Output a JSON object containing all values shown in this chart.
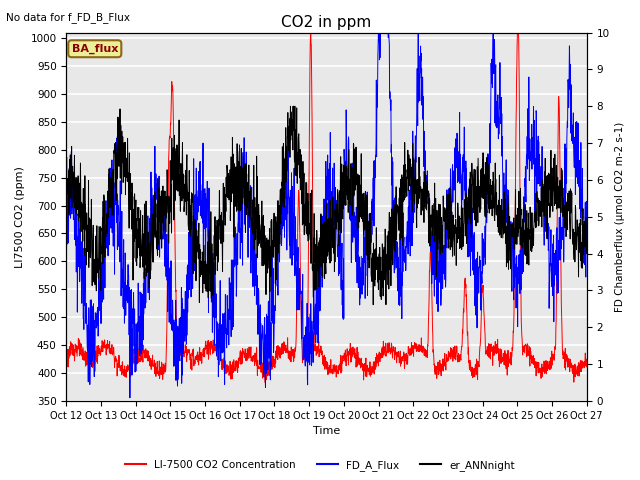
{
  "title": "CO2 in ppm",
  "top_left_text": "No data for f_FD_B_Flux",
  "ba_flux_label": "BA_flux",
  "xlabel": "Time",
  "ylabel_left": "LI7500 CO2 (ppm)",
  "ylabel_right": "FD Chamberflux (μmol CO2 m-2 s-1)",
  "ylim_left": [
    350,
    1010
  ],
  "ylim_right": [
    0.0,
    10.0
  ],
  "yticks_left": [
    350,
    400,
    450,
    500,
    550,
    600,
    650,
    700,
    750,
    800,
    850,
    900,
    950,
    1000
  ],
  "yticks_right": [
    0.0,
    1.0,
    2.0,
    3.0,
    4.0,
    5.0,
    6.0,
    7.0,
    8.0,
    9.0,
    10.0
  ],
  "xtick_labels": [
    "Oct 12",
    "Oct 13",
    "Oct 14",
    "Oct 15",
    "Oct 16",
    "Oct 17",
    "Oct 18",
    "Oct 19",
    "Oct 20",
    "Oct 21",
    "Oct 22",
    "Oct 23",
    "Oct 24",
    "Oct 25",
    "Oct 26",
    "Oct 27"
  ],
  "legend_entries": [
    "LI-7500 CO2 Concentration",
    "FD_A_Flux",
    "er_ANNnight"
  ],
  "color_red": "#ff0000",
  "color_blue": "#0000ff",
  "color_black": "#000000",
  "bg_color": "#e8e8e8",
  "grid_color": "white",
  "n_points": 2000,
  "figsize": [
    6.4,
    4.8
  ],
  "dpi": 100
}
